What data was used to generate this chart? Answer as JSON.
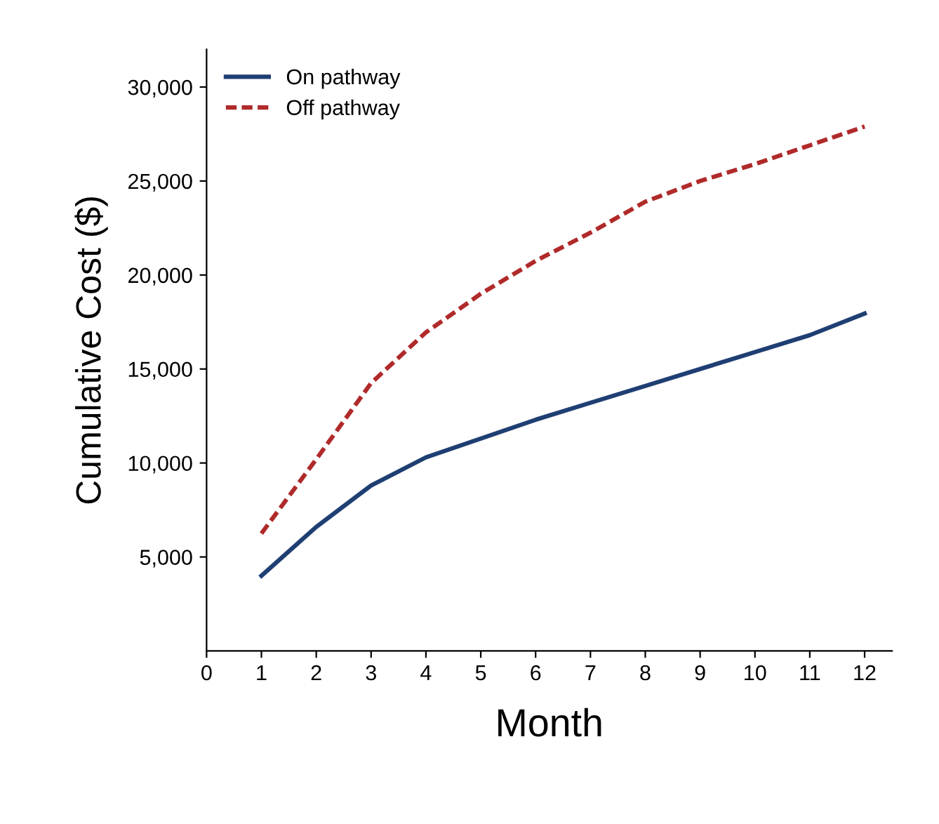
{
  "chart_data": {
    "type": "line",
    "xlabel": "Month",
    "ylabel": "Cumulative Cost ($)",
    "x": [
      1,
      2,
      3,
      4,
      5,
      6,
      7,
      8,
      9,
      10,
      11,
      12
    ],
    "series": [
      {
        "name": "On pathway",
        "color": "#1f3f73",
        "line_style": "solid",
        "values": [
          4000,
          6600,
          8800,
          10300,
          11300,
          12300,
          13200,
          14100,
          15000,
          15900,
          16800,
          17950
        ]
      },
      {
        "name": "Off pathway",
        "color": "#b02a2a",
        "line_style": "dashed",
        "values": [
          6250,
          10200,
          14250,
          16950,
          19000,
          20750,
          22250,
          23900,
          25000,
          25900,
          26900,
          27900
        ]
      }
    ],
    "xlim": [
      0,
      12.5
    ],
    "xticks": [
      0,
      1,
      2,
      3,
      4,
      5,
      6,
      7,
      8,
      9,
      10,
      11,
      12
    ],
    "ylim": [
      0,
      32000
    ],
    "yticks": [
      {
        "value": 5000,
        "label": "5,000"
      },
      {
        "value": 10000,
        "label": "10,000"
      },
      {
        "value": 15000,
        "label": "15,000"
      },
      {
        "value": 20000,
        "label": "20,000"
      },
      {
        "value": 25000,
        "label": "25,000"
      },
      {
        "value": 30000,
        "label": "30,000"
      }
    ],
    "legend": "top left",
    "grid": false,
    "marker": "none"
  }
}
